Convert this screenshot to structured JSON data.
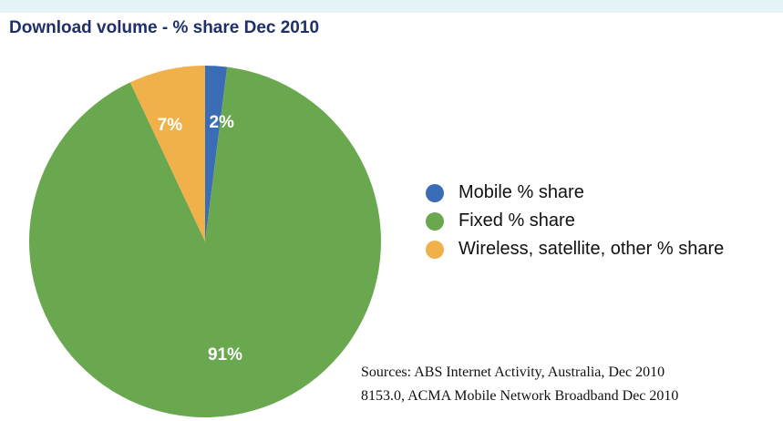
{
  "chart_data": {
    "type": "pie",
    "title": "Download volume - % share Dec 2010",
    "series": [
      {
        "name": "Mobile % share",
        "value": 2,
        "label": "2%",
        "color": "#3a6db5"
      },
      {
        "name": "Fixed % share",
        "value": 91,
        "label": "91%",
        "color": "#6aa84f"
      },
      {
        "name": "Wireless, satellite, other % share",
        "value": 7,
        "label": "7%",
        "color": "#f0b04a"
      }
    ],
    "legend_position": "right",
    "sources": [
      "Sources: ABS Internet Activity, Australia, Dec 2010",
      "8153.0, ACMA Mobile Network Broadband Dec 2010"
    ]
  }
}
